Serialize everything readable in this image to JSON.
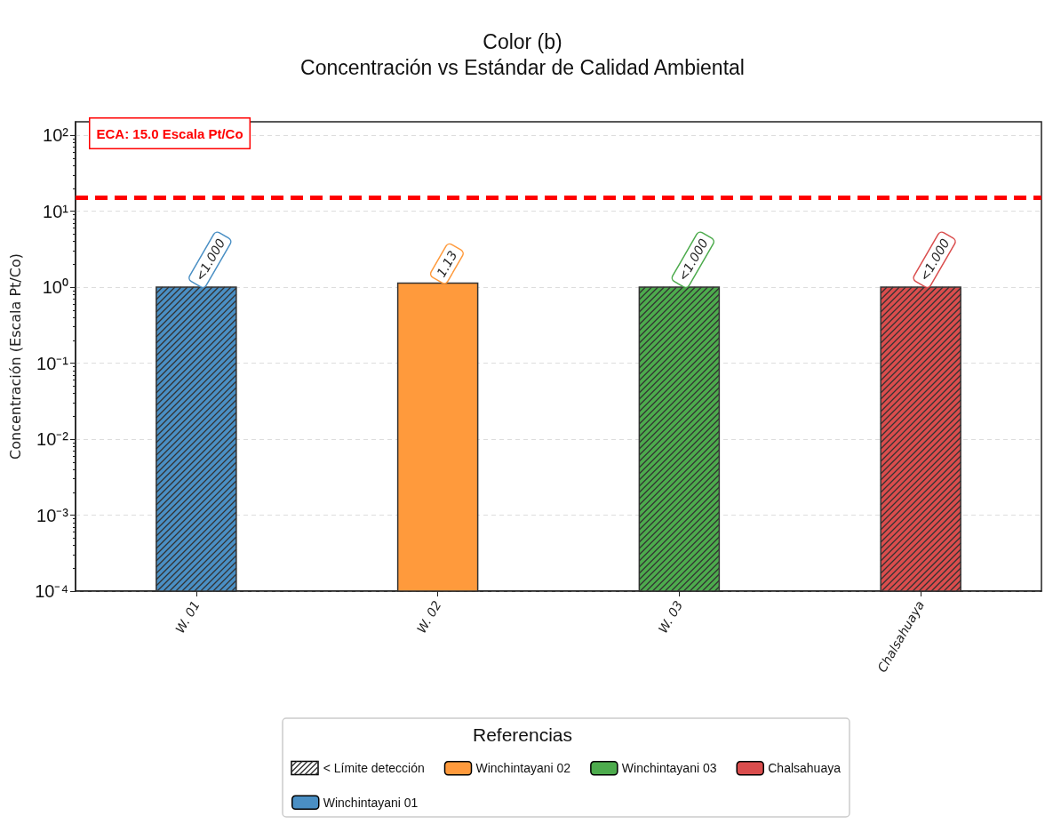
{
  "chart_data": {
    "type": "bar",
    "title": "Color (b)",
    "subtitle": "Concentración vs Estándar de Calidad Ambiental",
    "ylabel": "Concentración (Escala Pt/Co)",
    "legend_title": "Referencias",
    "categories": [
      "W. 01",
      "W. 02",
      "W. 03",
      "Chalsahuaya"
    ],
    "series": [
      {
        "name": "< Límite detección",
        "color": "#333333",
        "colors": [
          "#4a8fc4",
          null,
          "#4dab4d",
          "#da4d4d"
        ],
        "values": [
          1.0,
          null,
          1.0,
          1.0
        ],
        "value_labels": [
          "<1.000",
          null,
          "<1.000",
          "<1.000"
        ]
      },
      {
        "name": "Winchintayani 01",
        "color": "#4a8fc4",
        "values": [
          null,
          null,
          null,
          null
        ]
      },
      {
        "name": "Winchintayani 02",
        "color": "#ff9a3c",
        "values": [
          null,
          1.13,
          null,
          null
        ],
        "value_labels": [
          null,
          "1.13",
          null,
          null
        ]
      },
      {
        "name": "Winchintayani 03",
        "color": "#4dab4d",
        "values": [
          null,
          null,
          null,
          null
        ]
      },
      {
        "name": "Chalsahuaya",
        "color": "#da4d4d",
        "values": [
          null,
          null,
          null,
          null
        ]
      }
    ],
    "log": "y",
    "ylim": [
      0.0001,
      150
    ],
    "yticks": [
      {
        "value": 0.0001,
        "label": "10⁻⁴"
      },
      {
        "value": 0.001,
        "label": "10⁻³"
      },
      {
        "value": 0.01,
        "label": "10⁻²"
      },
      {
        "value": 0.1,
        "label": "10⁻¹"
      },
      {
        "value": 1,
        "label": "10⁰"
      },
      {
        "value": 10,
        "label": "10¹"
      },
      {
        "value": 100,
        "label": "10²"
      }
    ],
    "ref_lines": [
      {
        "axis": "y",
        "value": 15,
        "label": "ECA: 15.0 Escala Pt/Co",
        "color": "#ff0000",
        "line_style": "dashed"
      }
    ],
    "grid": "y",
    "legend": "bottom"
  }
}
